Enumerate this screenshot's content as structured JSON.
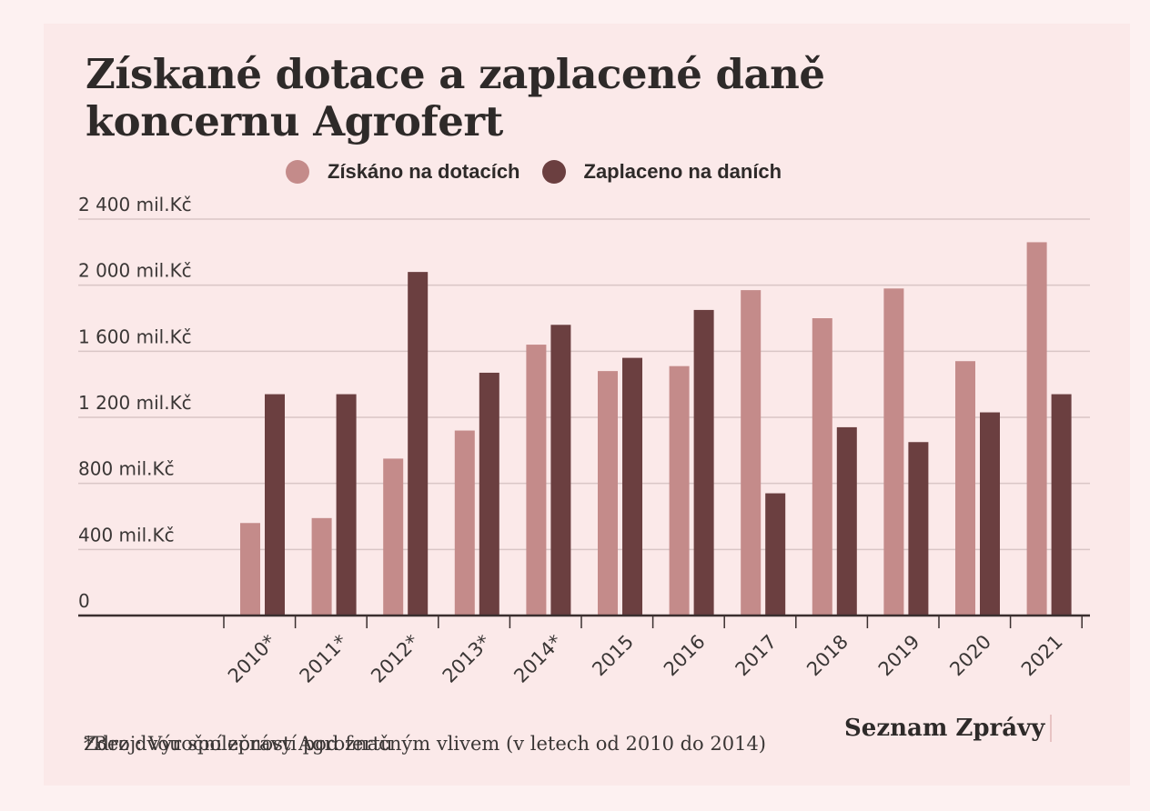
{
  "colors": {
    "subsidies": "#c48b8a",
    "taxes": "#6b3f40",
    "background": "#fbe9e9",
    "grid": "#d9c6c6",
    "axis": "#3a2f2f"
  },
  "chart_data": {
    "type": "bar",
    "title": "Získané dotace a zaplacené daně koncernu Agrofert",
    "categories": [
      "2010*",
      "2011*",
      "2012*",
      "2013*",
      "2014*",
      "2015",
      "2016",
      "2017",
      "2018",
      "2019",
      "2020",
      "2021"
    ],
    "series": [
      {
        "name": "Získáno na dotacích",
        "values": [
          560,
          590,
          950,
          1120,
          1640,
          1480,
          1510,
          1970,
          1800,
          1980,
          1540,
          2260
        ]
      },
      {
        "name": "Zaplaceno na daních",
        "values": [
          1340,
          1340,
          2080,
          1470,
          1760,
          1560,
          1850,
          740,
          1140,
          1050,
          1230,
          1340
        ]
      }
    ],
    "ylim": [
      0,
      2400
    ],
    "yticks": [
      {
        "value": 0,
        "label": "0"
      },
      {
        "value": 400,
        "label": "400 mil.Kč"
      },
      {
        "value": 800,
        "label": "800 mil.Kč"
      },
      {
        "value": 1200,
        "label": "1 200 mil.Kč"
      },
      {
        "value": 1600,
        "label": "1 600 mil.Kč"
      },
      {
        "value": 2000,
        "label": "2 000 mil.Kč"
      },
      {
        "value": 2400,
        "label": "2 400 mil.Kč"
      }
    ],
    "grid": true,
    "legend_position": "top"
  },
  "footnote": {
    "source": "Zdroj: Výroční zprávy Agrofertu",
    "note": "*Bez dvou společností pod značným vlivem (v letech od 2010 do 2014)"
  },
  "brand": "Seznam Zprávy"
}
